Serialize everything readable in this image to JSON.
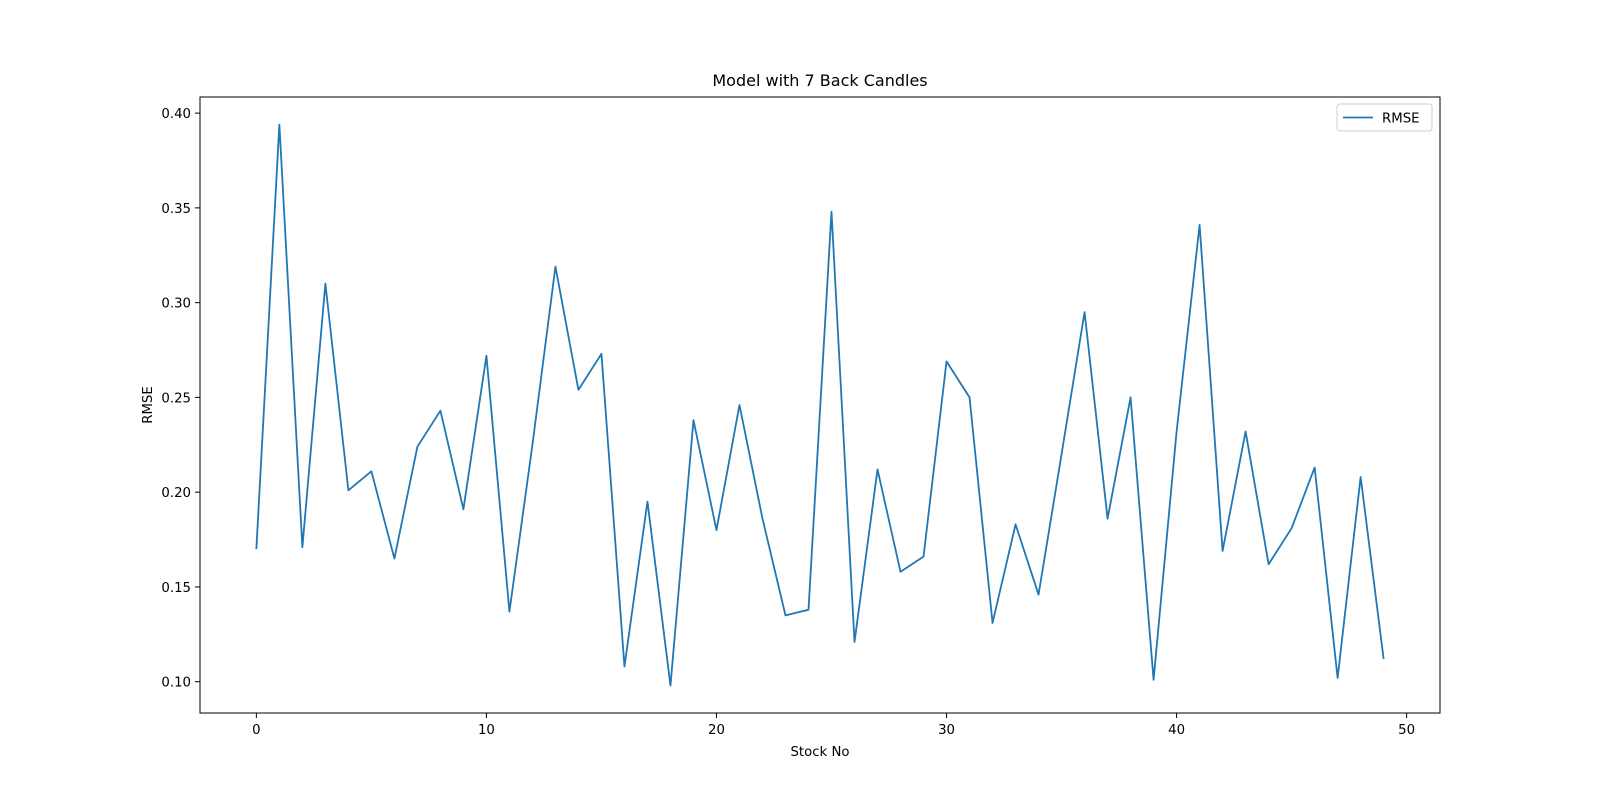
{
  "chart_data": {
    "type": "line",
    "title": "Model with 7 Back Candles",
    "xlabel": "Stock No",
    "ylabel": "RMSE",
    "xlim": [
      -2.45,
      51.45
    ],
    "ylim": [
      0.0835,
      0.4085
    ],
    "x_ticks": [
      0,
      10,
      20,
      30,
      40,
      50
    ],
    "y_ticks": [
      0.1,
      0.15,
      0.2,
      0.25,
      0.3,
      0.35,
      0.4
    ],
    "y_tick_labels": [
      "0.10",
      "0.15",
      "0.20",
      "0.25",
      "0.30",
      "0.35",
      "0.40"
    ],
    "grid": false,
    "legend_position": "top-right",
    "series": [
      {
        "name": "RMSE",
        "color": "#1f77b4",
        "x": [
          0,
          1,
          2,
          3,
          4,
          5,
          6,
          7,
          8,
          9,
          10,
          11,
          12,
          13,
          14,
          15,
          16,
          17,
          18,
          19,
          20,
          21,
          22,
          23,
          24,
          25,
          26,
          27,
          28,
          29,
          30,
          31,
          32,
          33,
          34,
          35,
          36,
          37,
          38,
          39,
          40,
          41,
          42,
          43,
          44,
          45,
          46,
          47,
          48,
          49
        ],
        "values": [
          0.17,
          0.394,
          0.171,
          0.31,
          0.201,
          0.211,
          0.165,
          0.224,
          0.243,
          0.191,
          0.272,
          0.137,
          0.225,
          0.319,
          0.254,
          0.273,
          0.108,
          0.195,
          0.098,
          0.238,
          0.18,
          0.246,
          0.186,
          0.135,
          0.138,
          0.348,
          0.121,
          0.212,
          0.158,
          0.166,
          0.269,
          0.25,
          0.131,
          0.183,
          0.146,
          0.22,
          0.295,
          0.186,
          0.25,
          0.101,
          0.232,
          0.341,
          0.169,
          0.232,
          0.162,
          0.181,
          0.213,
          0.102,
          0.208,
          0.112
        ]
      }
    ]
  }
}
